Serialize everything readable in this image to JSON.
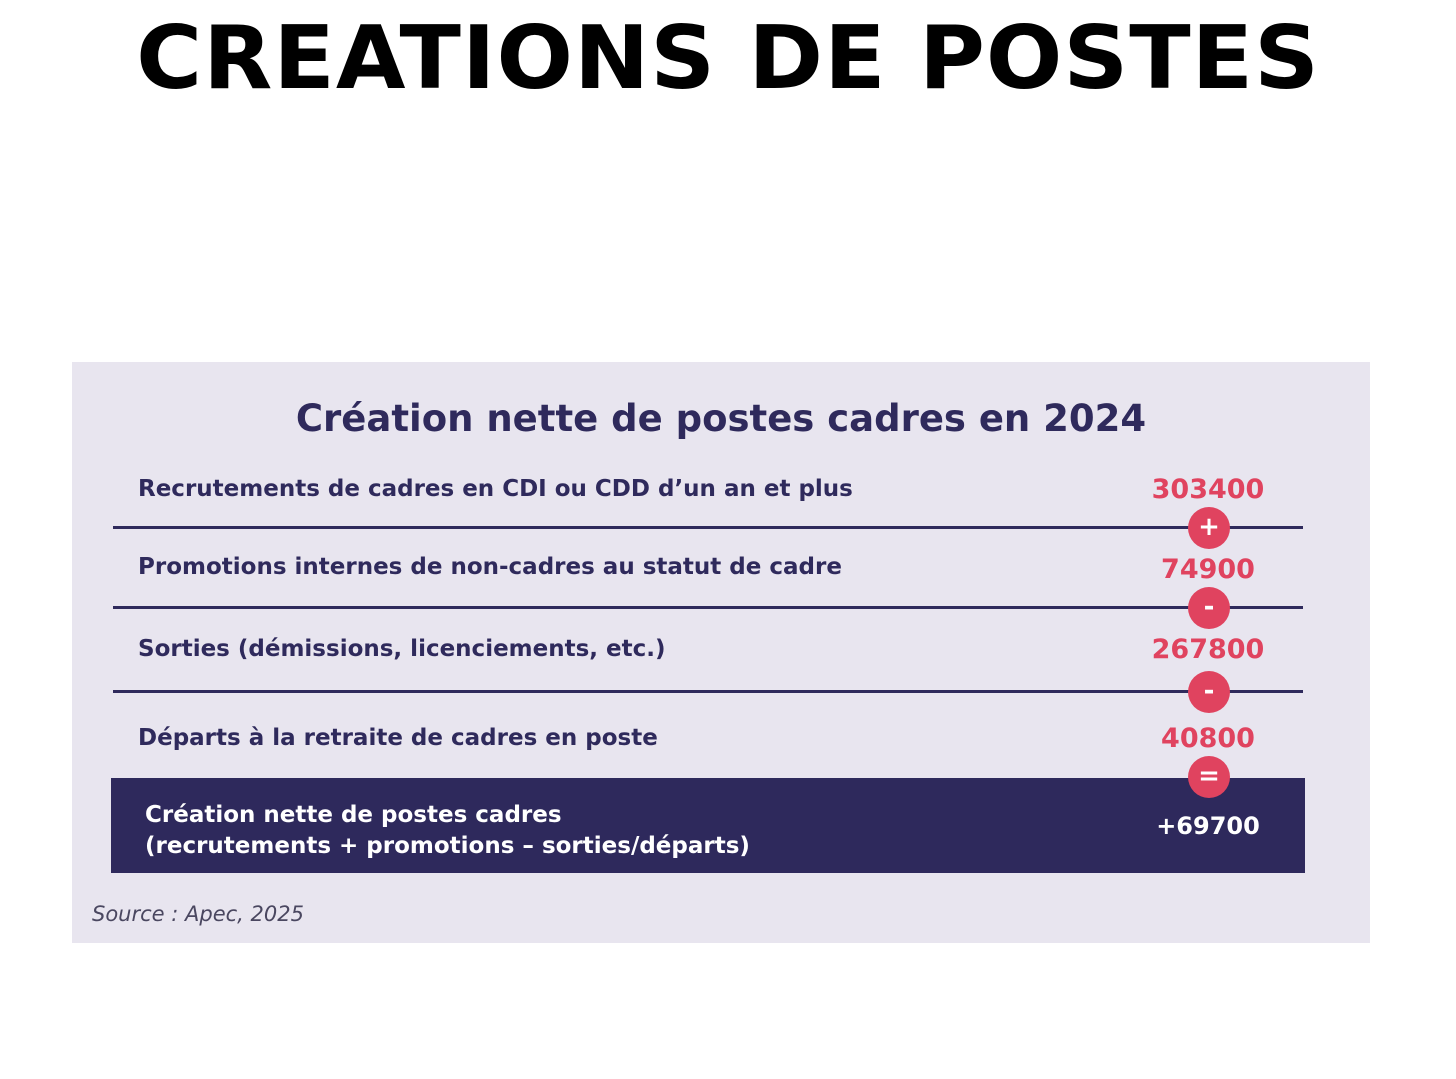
{
  "page_title": "CREATIONS DE POSTES",
  "card": {
    "title": "Création nette de postes cadres en 2024",
    "rows": [
      {
        "label": "Recrutements de cadres en CDI ou CDD d’un an et plus",
        "value": "303400",
        "operator": "+"
      },
      {
        "label": "Promotions internes de non-cadres au statut de cadre",
        "value": "74900",
        "operator": "-"
      },
      {
        "label": "Sorties (démissions, licenciements, etc.)",
        "value": "267800",
        "operator": "-"
      },
      {
        "label": "Départs à la retraite de cadres en poste",
        "value": "40800",
        "operator": "="
      }
    ],
    "total": {
      "label_line1": "Création nette de postes cadres",
      "label_line2": "(recrutements + promotions – sorties/départs)",
      "value": "+69700"
    },
    "source": "Source : Apec, 2025"
  },
  "colors": {
    "navy": "#2f2a5c",
    "accent": "#e0435f",
    "card_background": "#e8e5ef"
  }
}
